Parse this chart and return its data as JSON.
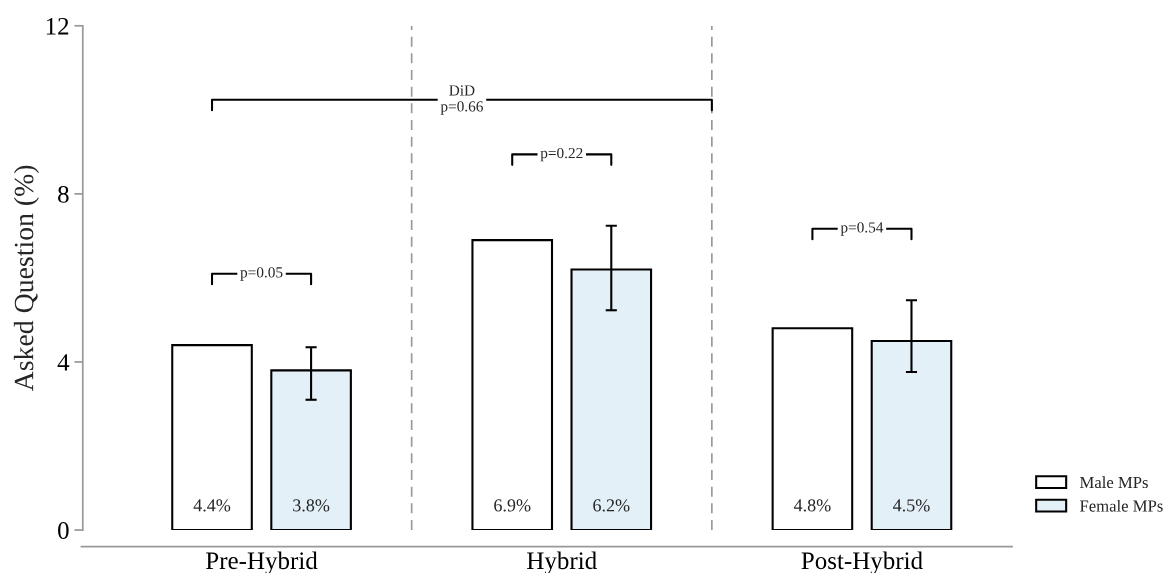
{
  "chart_data": {
    "type": "bar",
    "ylabel": "Asked Question (%)",
    "categories": [
      "Pre-Hybrid",
      "Hybrid",
      "Post-Hybrid"
    ],
    "series": [
      {
        "name": "Male MPs",
        "color": "#ffffff",
        "values": [
          4.4,
          6.9,
          4.8
        ],
        "value_labels": [
          "4.4%",
          "6.9%",
          "4.8%"
        ]
      },
      {
        "name": "Female MPs",
        "color": "#e4f0f7",
        "values": [
          3.8,
          6.2,
          4.5
        ],
        "value_labels": [
          "3.8%",
          "6.2%",
          "4.5%"
        ],
        "errors": [
          [
            3.1,
            4.35
          ],
          [
            5.23,
            7.24
          ],
          [
            3.76,
            5.47
          ]
        ]
      }
    ],
    "ylim": [
      0,
      12
    ],
    "yticks": [
      0,
      4,
      8,
      12
    ],
    "annotations": [
      "p=0.05",
      "p=0.22",
      "p=0.54",
      "DiD\np=0.66"
    ],
    "grid": false,
    "legend": "bottom right"
  }
}
